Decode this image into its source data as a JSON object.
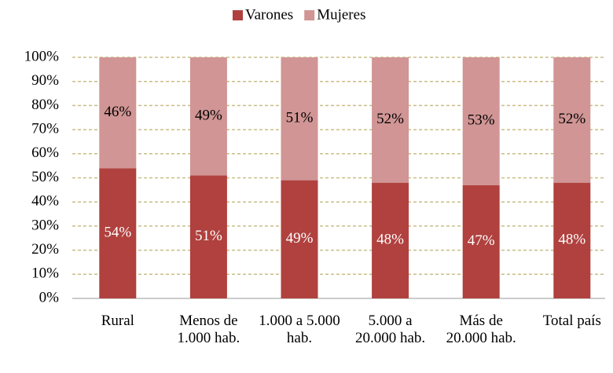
{
  "chart_data": {
    "type": "stacked_bar",
    "categories": [
      "Rural",
      "Menos de 1.000 hab.",
      "1.000 a 5.000 hab.",
      "5.000 a 20.000 hab.",
      "Más de 20.000 hab.",
      "Total país"
    ],
    "series": [
      {
        "name": "Varones",
        "color": "#b0413e",
        "values": [
          54,
          51,
          49,
          48,
          47,
          48
        ],
        "value_labels": [
          "54%",
          "51%",
          "49%",
          "48%",
          "47%",
          "48%"
        ]
      },
      {
        "name": "Mujeres",
        "color": "#d09594",
        "values": [
          46,
          49,
          51,
          52,
          53,
          52
        ],
        "value_labels": [
          "46%",
          "49%",
          "51%",
          "52%",
          "53%",
          "52%"
        ]
      }
    ],
    "ylim": [
      0,
      100
    ],
    "yticks": [
      {
        "value": 0,
        "label": "0%"
      },
      {
        "value": 10,
        "label": "10%"
      },
      {
        "value": 20,
        "label": "20%"
      },
      {
        "value": 30,
        "label": "30%"
      },
      {
        "value": 40,
        "label": "40%"
      },
      {
        "value": 50,
        "label": "50%"
      },
      {
        "value": 60,
        "label": "60%"
      },
      {
        "value": 70,
        "label": "70%"
      },
      {
        "value": 80,
        "label": "80%"
      },
      {
        "value": 90,
        "label": "90%"
      },
      {
        "value": 100,
        "label": "100%"
      }
    ],
    "grid": true,
    "legend": "top"
  }
}
